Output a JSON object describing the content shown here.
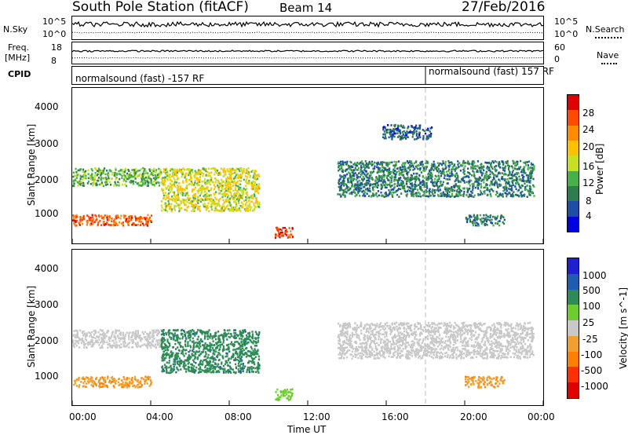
{
  "header": {
    "title": "South Pole Station (fitACF)",
    "beam": "Beam 14",
    "date": "27/Feb/2016"
  },
  "strip_labels": {
    "nsky": "N.Sky",
    "nsky_top": "10^5",
    "nsky_bottom": "10^0",
    "nsky_top_r": "10^5",
    "nsky_bottom_r": "10^0",
    "nsearch": "N.Search",
    "freq": "Freq.",
    "freq_unit": "[MHz]",
    "freq_top": "18",
    "freq_bottom": "8",
    "nave_top": "60",
    "nave_bottom": "0",
    "nave": "Nave",
    "cpid": "CPID",
    "cpid_left": "normalsound (fast) -157 RF",
    "cpid_right": "normalsound (fast) 157 RF"
  },
  "axes": {
    "ylabel": "Slant Range [km]",
    "xlabel": "Time UT",
    "yticks": [
      "4000",
      "3000",
      "2000",
      "1000"
    ],
    "xticks": [
      "00:00",
      "04:00",
      "08:00",
      "12:00",
      "16:00",
      "20:00",
      "00:00"
    ]
  },
  "colorbars": {
    "power_label": "Power [dB]",
    "power_ticks": [
      "28",
      "24",
      "20",
      "16",
      "12",
      "8",
      "4"
    ],
    "power_colors": [
      "#e00000",
      "#ff4a00",
      "#ff8c00",
      "#ffc000",
      "#c8e020",
      "#48b048",
      "#2e7d4e",
      "#1d4ea6",
      "#0000e0"
    ],
    "velocity_label": "Velocity [m s^-1]",
    "velocity_ticks": [
      "1000",
      "500",
      "100",
      "25",
      "-25",
      "-100",
      "-500",
      "-1000"
    ],
    "velocity_colors": [
      "#2020d0",
      "#1f5bb0",
      "#2e8b57",
      "#6dcc2f",
      "#c8c8c8",
      "#f0a030",
      "#ff8000",
      "#ff3000",
      "#e00000"
    ]
  },
  "chart_data": [
    {
      "type": "heatmap",
      "name": "power",
      "x_range_hours": [
        0,
        24
      ],
      "y_range_km": [
        180,
        4500
      ],
      "colorbar_range_db": [
        0,
        30
      ],
      "regions": [
        {
          "t0": 0.0,
          "t1": 4.5,
          "r0": 1800,
          "r1": 2300,
          "value": 12
        },
        {
          "t0": 4.5,
          "t1": 9.5,
          "r0": 1100,
          "r1": 2300,
          "value": 16
        },
        {
          "t0": 0.0,
          "t1": 4.0,
          "r0": 700,
          "r1": 1000,
          "value": 24
        },
        {
          "t0": 10.3,
          "t1": 11.2,
          "r0": 350,
          "r1": 650,
          "value": 26
        },
        {
          "t0": 13.5,
          "t1": 23.5,
          "r0": 1500,
          "r1": 2500,
          "value": 8
        },
        {
          "t0": 15.8,
          "t1": 18.3,
          "r0": 3100,
          "r1": 3500,
          "value": 6
        },
        {
          "t0": 20.0,
          "t1": 22.0,
          "r0": 700,
          "r1": 1000,
          "value": 8
        }
      ]
    },
    {
      "type": "heatmap",
      "name": "velocity",
      "x_range_hours": [
        0,
        24
      ],
      "y_range_km": [
        180,
        4500
      ],
      "colorbar_range_ms": [
        -1000,
        1000
      ],
      "regions": [
        {
          "t0": 0.0,
          "t1": 4.5,
          "r0": 1800,
          "r1": 2300,
          "value": 0
        },
        {
          "t0": 4.5,
          "t1": 9.5,
          "r0": 1100,
          "r1": 2300,
          "value": 500
        },
        {
          "t0": 0.0,
          "t1": 4.0,
          "r0": 700,
          "r1": 1000,
          "value": -300
        },
        {
          "t0": 10.3,
          "t1": 11.2,
          "r0": 350,
          "r1": 650,
          "value": 200
        },
        {
          "t0": 13.5,
          "t1": 23.5,
          "r0": 1500,
          "r1": 2500,
          "value": 0
        },
        {
          "t0": 20.0,
          "t1": 22.0,
          "r0": 700,
          "r1": 1000,
          "value": -300
        }
      ]
    }
  ]
}
